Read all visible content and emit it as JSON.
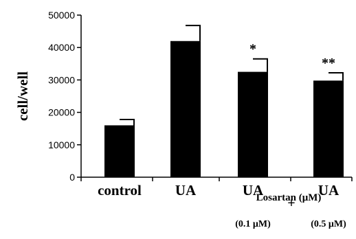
{
  "chart_data": {
    "type": "bar",
    "title": "",
    "ylabel": "cell/well",
    "xlabel": "",
    "ylim": [
      0,
      50000
    ],
    "yticks": [
      0,
      10000,
      20000,
      30000,
      40000,
      50000
    ],
    "grid": false,
    "categories": [
      "control",
      "UA",
      "UA",
      "UA"
    ],
    "values": [
      16000,
      42000,
      32500,
      29800
    ],
    "errors": [
      1800,
      4800,
      4000,
      2400
    ],
    "significance": [
      "",
      "",
      "*",
      "**"
    ],
    "bar_color": "#000000",
    "annotations": {
      "plus": "+",
      "losartan": "Losartan (μM)",
      "conc_1": "(0.1 μM)",
      "conc_2": "(0.5 μM)"
    }
  }
}
